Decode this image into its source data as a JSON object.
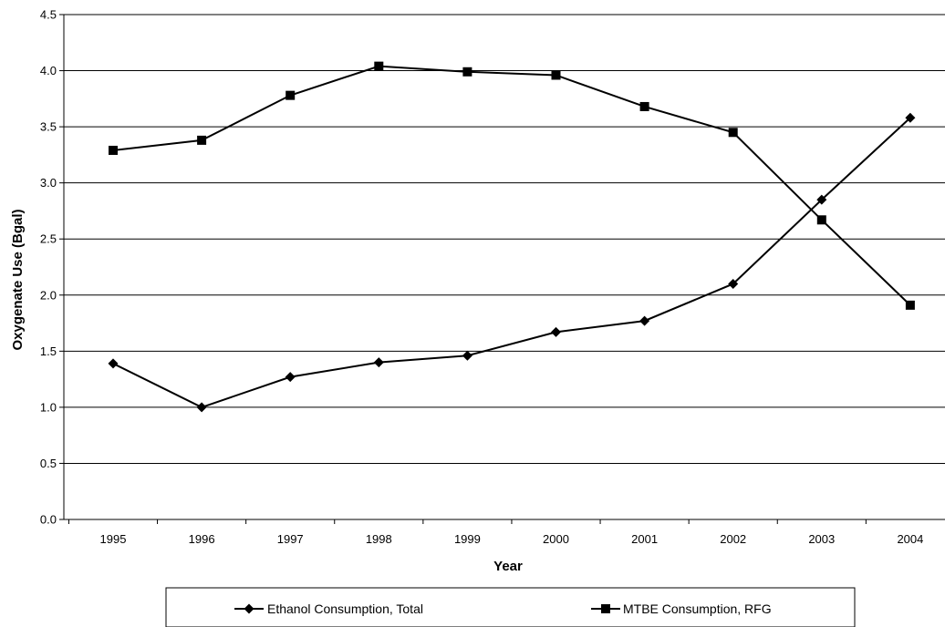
{
  "chart_data": {
    "type": "line",
    "title": "",
    "xlabel": "Year",
    "ylabel": "Oxygenate Use (Bgal)",
    "categories": [
      "1995",
      "1996",
      "1997",
      "1998",
      "1999",
      "2000",
      "2001",
      "2002",
      "2003",
      "2004"
    ],
    "ylim": [
      0,
      4.5
    ],
    "yticks": [
      "0.0",
      "0.5",
      "1.0",
      "1.5",
      "2.0",
      "2.5",
      "3.0",
      "3.5",
      "4.0",
      "4.5"
    ],
    "grid": true,
    "legend": "bottom",
    "series": [
      {
        "name": "Ethanol Consumption, Total",
        "marker": "diamond",
        "color": "#000000",
        "values": [
          1.39,
          1.0,
          1.27,
          1.4,
          1.46,
          1.67,
          1.77,
          2.1,
          2.85,
          3.58
        ]
      },
      {
        "name": "MTBE Consumption, RFG",
        "marker": "square",
        "color": "#000000",
        "values": [
          3.29,
          3.38,
          3.78,
          4.04,
          3.99,
          3.96,
          3.68,
          3.45,
          2.67,
          1.91
        ]
      }
    ]
  }
}
